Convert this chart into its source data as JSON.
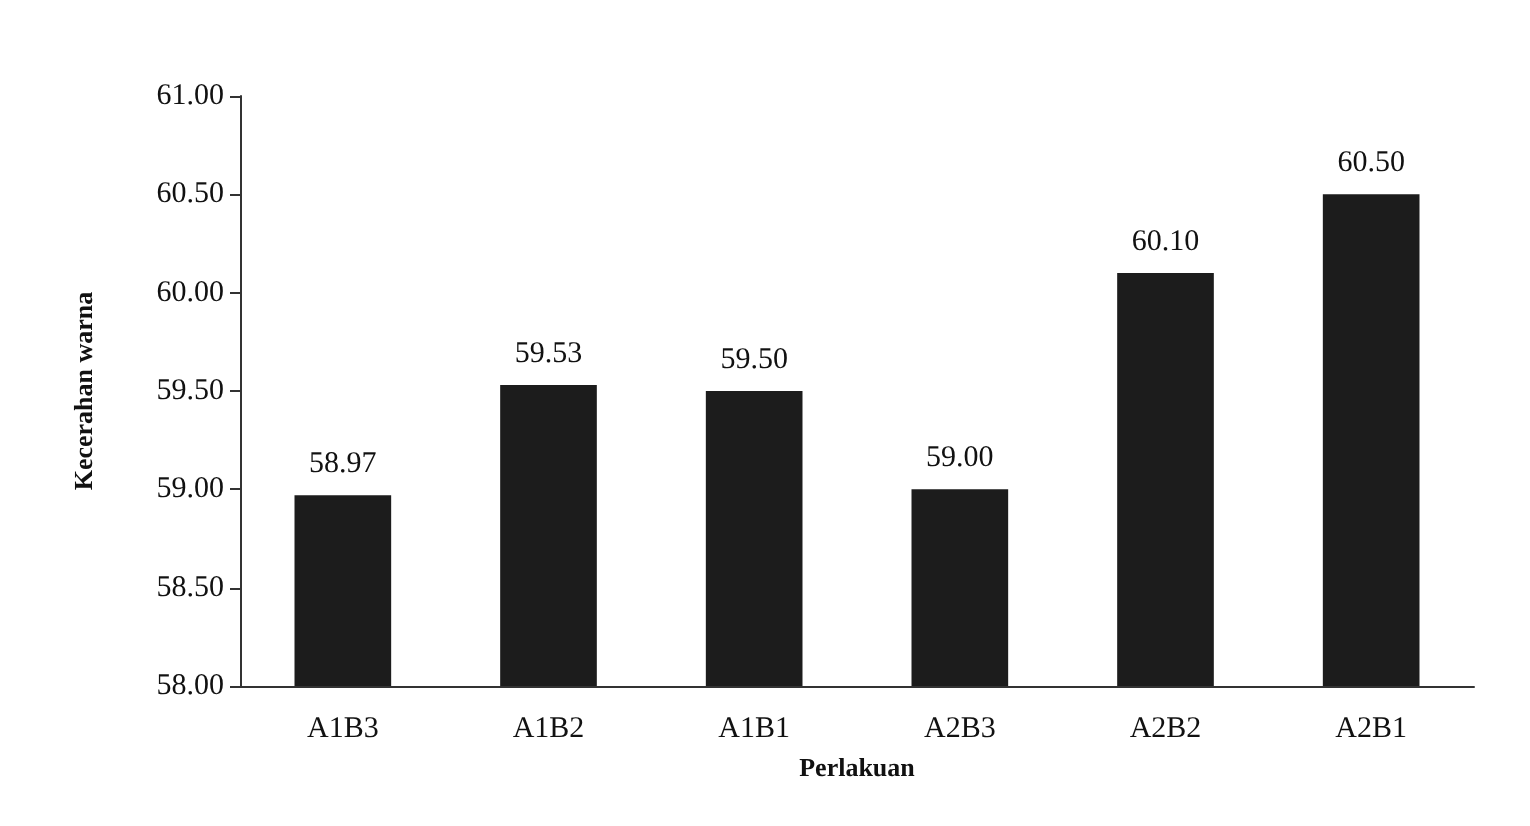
{
  "chart_data": {
    "type": "bar",
    "xlabel": "Perlakuan",
    "ylabel": "Kecerahan warna",
    "categories": [
      "A1B3",
      "A1B2",
      "A1B1",
      "A2B3",
      "A2B2",
      "A2B1"
    ],
    "values": [
      58.97,
      59.53,
      59.5,
      59.0,
      60.1,
      60.5
    ],
    "value_labels": [
      "58.97",
      "59.53",
      "59.50",
      "59.00",
      "60.10",
      "60.50"
    ],
    "color": "#1c1c1c",
    "ylim": [
      58,
      61
    ],
    "yticks": [
      {
        "value": 58,
        "label": "58.00"
      },
      {
        "value": 58.5,
        "label": "58.50"
      },
      {
        "value": 59,
        "label": "59.00"
      },
      {
        "value": 59.5,
        "label": "59.50"
      },
      {
        "value": 60,
        "label": "60.00"
      },
      {
        "value": 60.5,
        "label": "60.50"
      },
      {
        "value": 61,
        "label": "61.00"
      }
    ],
    "grid": false
  }
}
